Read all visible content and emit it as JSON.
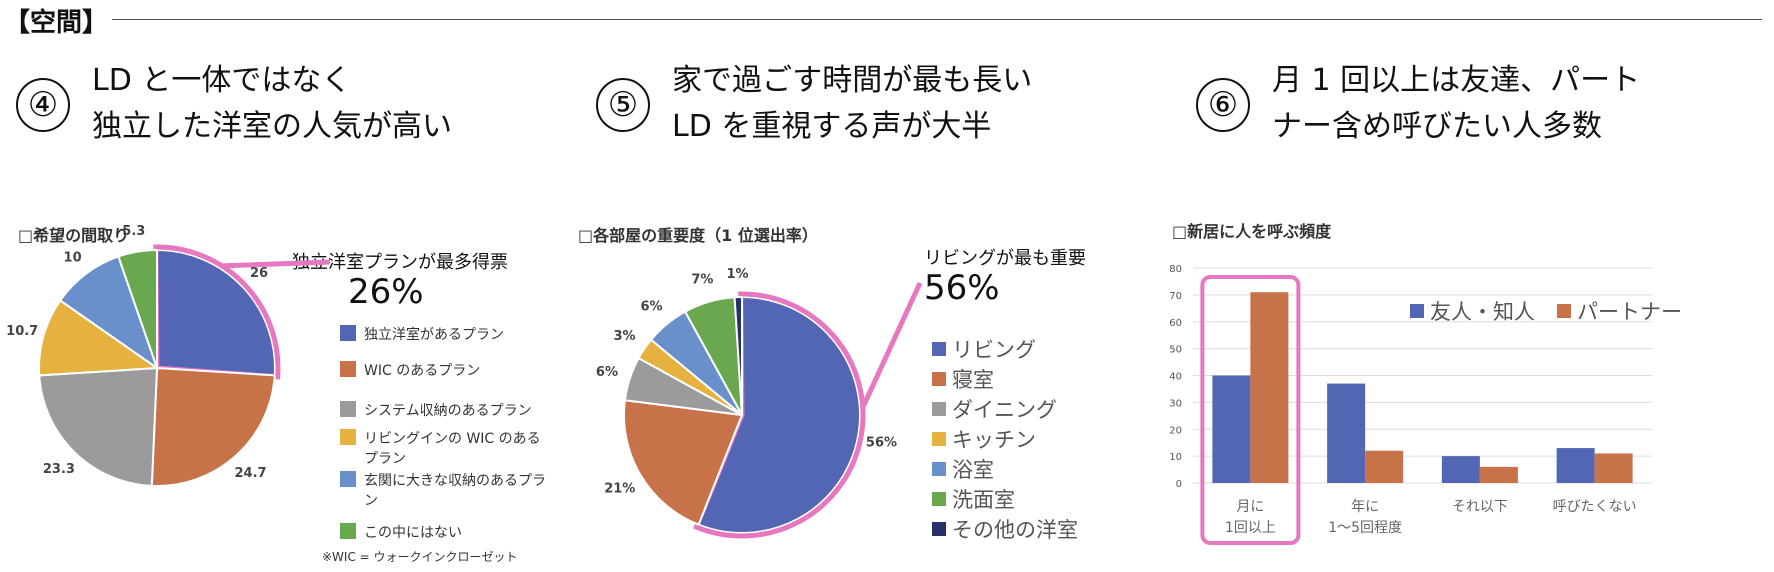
{
  "section_label": "【空間】",
  "headings": [
    {
      "number": "④",
      "lines": [
        "LD と一体ではなく",
        "独立した洋室の人気が高い"
      ]
    },
    {
      "number": "⑤",
      "lines": [
        "家で過ごす時間が最も長い",
        "LD を重視する声が大半"
      ]
    },
    {
      "number": "⑥",
      "lines": [
        "月 1 回以上は友達、パート",
        "ナー含め呼びたい人多数"
      ]
    }
  ],
  "colors": {
    "blue": "#5266b4",
    "orange": "#c8724a",
    "gray": "#9b9b9b",
    "yellow": "#e5b23f",
    "lightblue": "#6a90cc",
    "green": "#6aa84f",
    "navy": "#27306b",
    "highlight": "#e777c0"
  },
  "chart_data": [
    {
      "type": "pie",
      "title": "□希望の間取り",
      "callout": "独立洋室プランが最多得票",
      "callout_value": "26%",
      "labels": [
        "独立洋室があるプラン",
        "WIC のあるプラン",
        "システム収納のあるプラン",
        "リビングインの WIC のあるプラン",
        "玄関に大きな収納のあるプラン",
        "この中にはない"
      ],
      "values": [
        26,
        24.7,
        23.3,
        10.7,
        10,
        5.3
      ],
      "value_labels": [
        "26",
        "24.7",
        "23.3",
        "10.7",
        "10",
        "5.3"
      ],
      "note": "※WIC = ウォークインクローゼット",
      "highlight_index": 0
    },
    {
      "type": "pie",
      "title": "□各部屋の重要度（1 位選出率）",
      "callout": "リビングが最も重要",
      "callout_value": "56%",
      "labels": [
        "リビング",
        "寝室",
        "ダイニング",
        "キッチン",
        "浴室",
        "洗面室",
        "その他の洋室"
      ],
      "values": [
        56,
        21,
        6,
        3,
        6,
        7,
        1
      ],
      "value_labels": [
        "56%",
        "21%",
        "6%",
        "3%",
        "6%",
        "7%",
        "1%"
      ],
      "highlight_index": 0
    },
    {
      "type": "bar",
      "title": "□新居に人を呼ぶ頻度",
      "categories": [
        "月に\n1回以上",
        "年に\n1〜5回程度",
        "それ以下",
        "呼びたくない"
      ],
      "series": [
        {
          "name": "友人・知人",
          "values": [
            40,
            37,
            10,
            13
          ]
        },
        {
          "name": "パートナー",
          "values": [
            71,
            12,
            6,
            11
          ]
        }
      ],
      "ylim": [
        0,
        80
      ],
      "yticks": [
        0,
        10,
        20,
        30,
        40,
        50,
        60,
        70,
        80
      ],
      "grid": true,
      "legend": "top-right",
      "highlight_index": 0
    }
  ]
}
